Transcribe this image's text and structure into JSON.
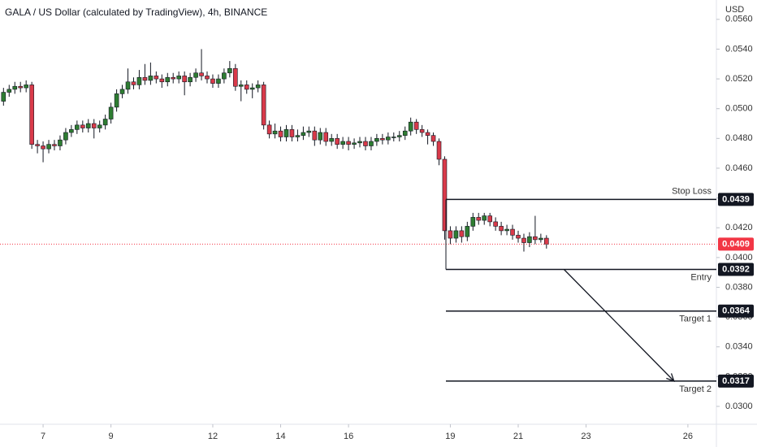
{
  "chart_data": {
    "type": "candlestick",
    "title": "GALA / US Dollar (calculated by TradingView), 4h, BINANCE",
    "y_axis_label": "USD",
    "up_color": "#2e7d32",
    "down_color": "#d93a4a",
    "wick_color": "#131722",
    "grid": false,
    "xlim": [
      5.73,
      26.84
    ],
    "xticks": [
      7,
      9,
      12,
      14,
      16,
      19,
      21,
      23,
      26
    ],
    "ylim": [
      0.0288,
      0.0573
    ],
    "yticks": [
      {
        "value": 0.03,
        "label": "0.0300"
      },
      {
        "value": 0.032,
        "label": "0.0320"
      },
      {
        "value": 0.034,
        "label": "0.0340"
      },
      {
        "value": 0.036,
        "label": "0.0360"
      },
      {
        "value": 0.038,
        "label": "0.0380"
      },
      {
        "value": 0.04,
        "label": "0.0400"
      },
      {
        "value": 0.042,
        "label": "0.0420"
      },
      {
        "value": 0.044,
        "label": "0.0440"
      },
      {
        "value": 0.046,
        "label": "0.0460"
      },
      {
        "value": 0.048,
        "label": "0.0480"
      },
      {
        "value": 0.05,
        "label": "0.0500"
      },
      {
        "value": 0.052,
        "label": "0.0520"
      },
      {
        "value": 0.054,
        "label": "0.0540"
      },
      {
        "value": 0.056,
        "label": "0.0560"
      }
    ],
    "x": [
      5.833,
      6,
      6.167,
      6.333,
      6.5,
      6.667,
      6.833,
      7,
      7.167,
      7.333,
      7.5,
      7.667,
      7.833,
      8,
      8.167,
      8.333,
      8.5,
      8.667,
      8.833,
      9,
      9.167,
      9.333,
      9.5,
      9.667,
      9.833,
      10,
      10.167,
      10.333,
      10.5,
      10.667,
      10.833,
      11,
      11.167,
      11.333,
      11.5,
      11.667,
      11.833,
      12,
      12.167,
      12.333,
      12.5,
      12.667,
      12.833,
      13,
      13.167,
      13.333,
      13.5,
      13.667,
      13.833,
      14,
      14.167,
      14.333,
      14.5,
      14.667,
      14.833,
      15,
      15.167,
      15.333,
      15.5,
      15.667,
      15.833,
      16,
      16.167,
      16.333,
      16.5,
      16.667,
      16.833,
      17,
      17.167,
      17.333,
      17.5,
      17.667,
      17.833,
      18,
      18.167,
      18.333,
      18.5,
      18.667,
      18.833,
      19,
      19.167,
      19.333,
      19.5,
      19.667,
      19.833,
      20,
      20.167,
      20.333,
      20.5,
      20.667,
      20.833,
      21,
      21.167,
      21.333,
      21.5,
      21.667,
      21.833
    ],
    "open": [
      0.0505,
      0.0511,
      0.0513,
      0.0515,
      0.0514,
      0.0516,
      0.0476,
      0.0475,
      0.0473,
      0.0476,
      0.0475,
      0.0479,
      0.0484,
      0.0486,
      0.0489,
      0.0487,
      0.049,
      0.0487,
      0.0489,
      0.0493,
      0.0501,
      0.051,
      0.0513,
      0.0518,
      0.0516,
      0.0521,
      0.0519,
      0.0522,
      0.052,
      0.0518,
      0.0521,
      0.052,
      0.0522,
      0.0518,
      0.0521,
      0.0524,
      0.0522,
      0.052,
      0.0517,
      0.052,
      0.0524,
      0.0527,
      0.0515,
      0.0516,
      0.0513,
      0.0514,
      0.0516,
      0.0489,
      0.0483,
      0.0485,
      0.0481,
      0.0486,
      0.0481,
      0.0482,
      0.0484,
      0.0485,
      0.0479,
      0.0484,
      0.0478,
      0.048,
      0.0476,
      0.0478,
      0.0476,
      0.0477,
      0.0478,
      0.0475,
      0.0478,
      0.048,
      0.0479,
      0.0481,
      0.0481,
      0.0482,
      0.0485,
      0.0491,
      0.0486,
      0.0484,
      0.0482,
      0.0478,
      0.0466,
      0.0418,
      0.0413,
      0.0418,
      0.0414,
      0.0421,
      0.0427,
      0.0425,
      0.0428,
      0.0424,
      0.0421,
      0.0418,
      0.0419,
      0.0415,
      0.0413,
      0.041,
      0.0414,
      0.0412,
      0.0413
    ],
    "high": [
      0.0514,
      0.0516,
      0.0518,
      0.0518,
      0.0519,
      0.0518,
      0.0479,
      0.0478,
      0.0479,
      0.0479,
      0.0482,
      0.0487,
      0.0489,
      0.0492,
      0.0492,
      0.0493,
      0.0493,
      0.0492,
      0.0496,
      0.0504,
      0.0513,
      0.0516,
      0.0527,
      0.0521,
      0.0526,
      0.053,
      0.0531,
      0.0525,
      0.0523,
      0.0524,
      0.0524,
      0.0525,
      0.0525,
      0.0524,
      0.0527,
      0.054,
      0.0525,
      0.0523,
      0.0523,
      0.0527,
      0.0532,
      0.053,
      0.0519,
      0.0519,
      0.0517,
      0.0519,
      0.0518,
      0.0492,
      0.049,
      0.0488,
      0.0489,
      0.0489,
      0.0486,
      0.0488,
      0.0488,
      0.0488,
      0.0487,
      0.0487,
      0.0483,
      0.0483,
      0.0481,
      0.0481,
      0.048,
      0.0481,
      0.0481,
      0.0481,
      0.0483,
      0.0483,
      0.0484,
      0.0484,
      0.0485,
      0.0488,
      0.0494,
      0.0493,
      0.0489,
      0.0486,
      0.0484,
      0.048,
      0.0468,
      0.0421,
      0.0421,
      0.0421,
      0.0424,
      0.043,
      0.043,
      0.043,
      0.043,
      0.0427,
      0.0424,
      0.0422,
      0.0422,
      0.0418,
      0.0416,
      0.0417,
      0.0428,
      0.0416,
      0.0415
    ],
    "low": [
      0.0502,
      0.0508,
      0.051,
      0.0511,
      0.0511,
      0.0473,
      0.047,
      0.0464,
      0.047,
      0.0472,
      0.0472,
      0.0476,
      0.0481,
      0.0483,
      0.0484,
      0.0484,
      0.048,
      0.0484,
      0.0486,
      0.049,
      0.0498,
      0.0507,
      0.051,
      0.0513,
      0.0513,
      0.0516,
      0.0516,
      0.0517,
      0.0514,
      0.0515,
      0.0517,
      0.0517,
      0.0509,
      0.0515,
      0.0518,
      0.0519,
      0.0517,
      0.0514,
      0.0514,
      0.0517,
      0.0521,
      0.0512,
      0.0505,
      0.051,
      0.0507,
      0.0511,
      0.0486,
      0.048,
      0.048,
      0.0478,
      0.0478,
      0.0478,
      0.0478,
      0.0479,
      0.0481,
      0.0475,
      0.0476,
      0.0475,
      0.0475,
      0.0473,
      0.0473,
      0.0472,
      0.0473,
      0.0474,
      0.0472,
      0.0472,
      0.0475,
      0.0476,
      0.0476,
      0.0478,
      0.0478,
      0.0479,
      0.0482,
      0.0483,
      0.0481,
      0.0476,
      0.0475,
      0.0462,
      0.0412,
      0.0409,
      0.041,
      0.041,
      0.0411,
      0.0418,
      0.0422,
      0.0422,
      0.0421,
      0.0418,
      0.0415,
      0.0415,
      0.0412,
      0.041,
      0.0404,
      0.0407,
      0.0409,
      0.041,
      0.0406
    ],
    "close": [
      0.0511,
      0.0513,
      0.0515,
      0.0514,
      0.0516,
      0.0476,
      0.0475,
      0.0473,
      0.0476,
      0.0475,
      0.0479,
      0.0484,
      0.0486,
      0.0489,
      0.0487,
      0.049,
      0.0487,
      0.0489,
      0.0493,
      0.0501,
      0.051,
      0.0513,
      0.0518,
      0.0516,
      0.0521,
      0.0519,
      0.0522,
      0.052,
      0.0518,
      0.0521,
      0.052,
      0.0522,
      0.0518,
      0.0521,
      0.0524,
      0.0522,
      0.052,
      0.0517,
      0.052,
      0.0524,
      0.0527,
      0.0515,
      0.0516,
      0.0513,
      0.0514,
      0.0516,
      0.0489,
      0.0483,
      0.0485,
      0.0481,
      0.0486,
      0.0481,
      0.0482,
      0.0484,
      0.0485,
      0.0479,
      0.0484,
      0.0478,
      0.048,
      0.0476,
      0.0478,
      0.0476,
      0.0477,
      0.0478,
      0.0475,
      0.0478,
      0.048,
      0.0479,
      0.0481,
      0.0481,
      0.0482,
      0.0485,
      0.0491,
      0.0486,
      0.0484,
      0.0482,
      0.0478,
      0.0466,
      0.0418,
      0.0413,
      0.0418,
      0.0414,
      0.0421,
      0.0427,
      0.0425,
      0.0428,
      0.0424,
      0.0421,
      0.0418,
      0.0419,
      0.0415,
      0.0413,
      0.041,
      0.0414,
      0.0412,
      0.0413,
      0.0409
    ],
    "last_price": 0.0409,
    "last_price_color": "#f23645",
    "level_start_x": 18.87,
    "levels": [
      {
        "label": "Stop Loss",
        "value": 0.0439,
        "label_side": "above"
      },
      {
        "label": "Entry",
        "value": 0.0392,
        "label_side": "below"
      },
      {
        "label": "Target 1",
        "value": 0.0364,
        "label_side": "below"
      },
      {
        "label": "Target 2",
        "value": 0.0317,
        "label_side": "below"
      }
    ],
    "arrow": {
      "from": [
        22.35,
        0.0392
      ],
      "to": [
        25.59,
        0.0317
      ]
    }
  }
}
